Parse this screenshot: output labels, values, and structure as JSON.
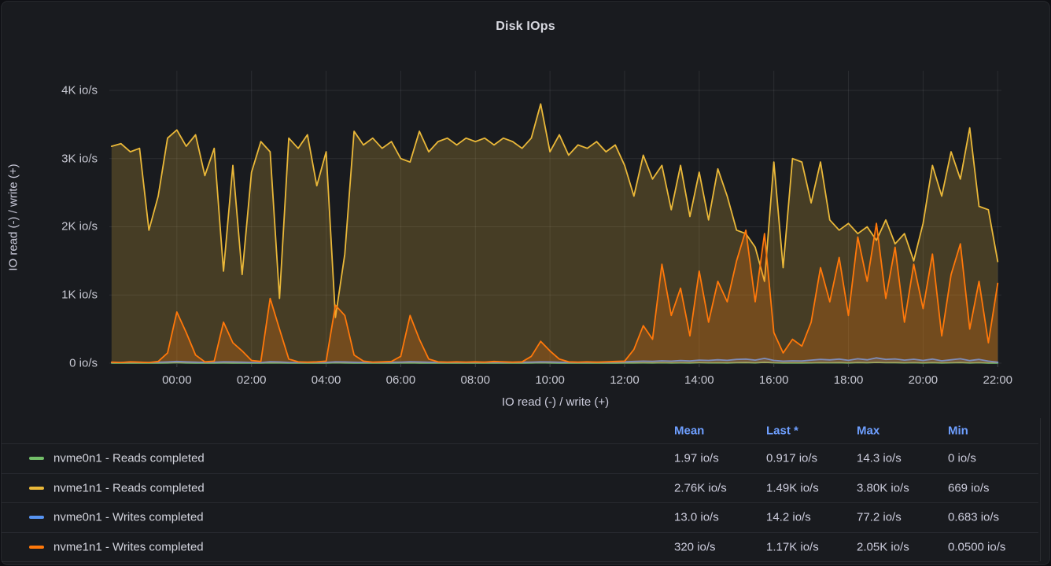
{
  "panel": {
    "title": "Disk IOps"
  },
  "colors": {
    "panel_bg": "#191b1f",
    "grid": "rgba(204,204,220,0.10)",
    "tick_text": "#c7c8d2",
    "header_blue": "#6e9fff",
    "green": "#73BF69",
    "yellow": "#EAB839",
    "blue": "#5794F2",
    "orange": "#FF780A"
  },
  "chart_data": {
    "type": "area",
    "title": "Disk IOps",
    "xlabel": "IO read (-) / write (+)",
    "ylabel": "IO read (-) / write (+)",
    "unit": "io/s",
    "x_unit": "hours_since_midnight",
    "xlim": [
      -1.81,
      22.1
    ],
    "ylim": [
      0,
      4288
    ],
    "grid": true,
    "legend_position": "bottom-table",
    "y_ticks": [
      {
        "v": 0,
        "label": "0 io/s"
      },
      {
        "v": 1000,
        "label": "1K io/s"
      },
      {
        "v": 2000,
        "label": "2K io/s"
      },
      {
        "v": 3000,
        "label": "3K io/s"
      },
      {
        "v": 4000,
        "label": "4K io/s"
      }
    ],
    "x_ticks": [
      {
        "t": 0,
        "label": "00:00"
      },
      {
        "t": 2,
        "label": "02:00"
      },
      {
        "t": 4,
        "label": "04:00"
      },
      {
        "t": 6,
        "label": "06:00"
      },
      {
        "t": 8,
        "label": "08:00"
      },
      {
        "t": 10,
        "label": "10:00"
      },
      {
        "t": 12,
        "label": "12:00"
      },
      {
        "t": 14,
        "label": "14:00"
      },
      {
        "t": 16,
        "label": "16:00"
      },
      {
        "t": 18,
        "label": "18:00"
      },
      {
        "t": 20,
        "label": "20:00"
      },
      {
        "t": 22,
        "label": "22:00"
      }
    ],
    "x": [
      -1.75,
      -1.5,
      -1.25,
      -1,
      -0.75,
      -0.5,
      -0.25,
      0,
      0.25,
      0.5,
      0.75,
      1,
      1.25,
      1.5,
      1.75,
      2,
      2.25,
      2.5,
      2.75,
      3,
      3.25,
      3.5,
      3.75,
      4,
      4.25,
      4.5,
      4.75,
      5,
      5.25,
      5.5,
      5.75,
      6,
      6.25,
      6.5,
      6.75,
      7,
      7.25,
      7.5,
      7.75,
      8,
      8.25,
      8.5,
      8.75,
      9,
      9.25,
      9.5,
      9.75,
      10,
      10.25,
      10.5,
      10.75,
      11,
      11.25,
      11.5,
      11.75,
      12,
      12.25,
      12.5,
      12.75,
      13,
      13.25,
      13.5,
      13.75,
      14,
      14.25,
      14.5,
      14.75,
      15,
      15.25,
      15.5,
      15.75,
      16,
      16.25,
      16.5,
      16.75,
      17,
      17.25,
      17.5,
      17.75,
      18,
      18.25,
      18.5,
      18.75,
      19,
      19.25,
      19.5,
      19.75,
      20,
      20.25,
      20.5,
      20.75,
      21,
      21.25,
      21.5,
      21.75,
      22
    ],
    "series": [
      {
        "name": "nvme0n1 - Reads completed",
        "color": "#73BF69",
        "fill_opacity": 0.22,
        "values": [
          2,
          1,
          3,
          2,
          1,
          2,
          4,
          8,
          3,
          2,
          1,
          2,
          3,
          2,
          1,
          2,
          1,
          5,
          3,
          2,
          1,
          2,
          1,
          2,
          6,
          3,
          2,
          1,
          2,
          1,
          2,
          3,
          5,
          2,
          1,
          2,
          1,
          2,
          1,
          2,
          1,
          2,
          1,
          2,
          1,
          3,
          6,
          4,
          2,
          1,
          2,
          1,
          2,
          1,
          2,
          3,
          4,
          5,
          3,
          6,
          4,
          5,
          3,
          8,
          5,
          6,
          4,
          7,
          9,
          5,
          14,
          6,
          3,
          4,
          3,
          5,
          7,
          6,
          8,
          4,
          9,
          6,
          12,
          7,
          8,
          5,
          7,
          4,
          8,
          3,
          6,
          9,
          4,
          7,
          2,
          0.9
        ]
      },
      {
        "name": "nvme1n1 - Reads completed",
        "color": "#EAB839",
        "fill_opacity": 0.22,
        "values": [
          3180,
          3220,
          3100,
          3150,
          1950,
          2450,
          3300,
          3420,
          3180,
          3350,
          2750,
          3150,
          1350,
          2900,
          1300,
          2800,
          3250,
          3100,
          950,
          3300,
          3150,
          3350,
          2600,
          3100,
          670,
          1600,
          3400,
          3200,
          3300,
          3150,
          3250,
          3000,
          2950,
          3400,
          3100,
          3250,
          3300,
          3200,
          3300,
          3250,
          3300,
          3200,
          3300,
          3250,
          3150,
          3300,
          3800,
          3100,
          3350,
          3050,
          3200,
          3150,
          3250,
          3100,
          3200,
          2900,
          2450,
          3050,
          2700,
          2900,
          2250,
          2900,
          2150,
          2800,
          2100,
          2850,
          2450,
          1950,
          1900,
          1700,
          1200,
          2950,
          1400,
          3000,
          2950,
          2350,
          2950,
          2100,
          1950,
          2050,
          1900,
          2000,
          1800,
          2100,
          1750,
          1900,
          1500,
          2050,
          2900,
          2450,
          3100,
          2700,
          3450,
          2300,
          2250,
          1490
        ]
      },
      {
        "name": "nvme0n1 - Writes completed",
        "color": "#5794F2",
        "fill_opacity": 0.2,
        "values": [
          12,
          10,
          15,
          12,
          10,
          14,
          18,
          25,
          20,
          15,
          12,
          14,
          20,
          18,
          15,
          12,
          10,
          22,
          18,
          12,
          10,
          12,
          14,
          12,
          20,
          18,
          14,
          12,
          10,
          12,
          14,
          16,
          22,
          18,
          14,
          12,
          10,
          12,
          10,
          12,
          14,
          12,
          10,
          12,
          14,
          16,
          20,
          18,
          14,
          12,
          10,
          12,
          14,
          12,
          16,
          20,
          25,
          30,
          28,
          35,
          30,
          38,
          32,
          45,
          40,
          50,
          42,
          55,
          60,
          45,
          70,
          40,
          30,
          35,
          32,
          45,
          55,
          48,
          60,
          42,
          65,
          50,
          77,
          55,
          62,
          45,
          58,
          40,
          60,
          35,
          50,
          65,
          38,
          55,
          30,
          14
        ]
      },
      {
        "name": "nvme1n1 - Writes completed",
        "color": "#FF780A",
        "fill_opacity": 0.24,
        "values": [
          15,
          10,
          20,
          15,
          10,
          25,
          150,
          750,
          450,
          120,
          20,
          30,
          600,
          300,
          180,
          40,
          25,
          950,
          500,
          60,
          20,
          15,
          20,
          30,
          850,
          700,
          120,
          30,
          15,
          20,
          25,
          100,
          700,
          350,
          60,
          20,
          15,
          20,
          15,
          20,
          15,
          25,
          20,
          15,
          20,
          100,
          320,
          180,
          60,
          20,
          15,
          20,
          15,
          20,
          25,
          30,
          200,
          550,
          350,
          1450,
          700,
          1100,
          400,
          1350,
          600,
          1200,
          900,
          1500,
          1950,
          900,
          1900,
          450,
          150,
          350,
          250,
          600,
          1400,
          900,
          1550,
          700,
          1850,
          1200,
          2050,
          950,
          1700,
          600,
          1450,
          800,
          1600,
          400,
          1300,
          1750,
          500,
          1200,
          300,
          1170
        ]
      }
    ]
  },
  "legend": {
    "columns": [
      "Mean",
      "Last *",
      "Max",
      "Min"
    ],
    "rows": [
      {
        "label": "nvme0n1 - Reads completed",
        "color": "#73BF69",
        "mean": "1.97 io/s",
        "last": "0.917 io/s",
        "max": "14.3 io/s",
        "min": "0 io/s"
      },
      {
        "label": "nvme1n1 - Reads completed",
        "color": "#EAB839",
        "mean": "2.76K io/s",
        "last": "1.49K io/s",
        "max": "3.80K io/s",
        "min": "669 io/s"
      },
      {
        "label": "nvme0n1 - Writes completed",
        "color": "#5794F2",
        "mean": "13.0 io/s",
        "last": "14.2 io/s",
        "max": "77.2 io/s",
        "min": "0.683 io/s"
      },
      {
        "label": "nvme1n1 - Writes completed",
        "color": "#FF780A",
        "mean": "320 io/s",
        "last": "1.17K io/s",
        "max": "2.05K io/s",
        "min": "0.0500 io/s"
      }
    ]
  }
}
